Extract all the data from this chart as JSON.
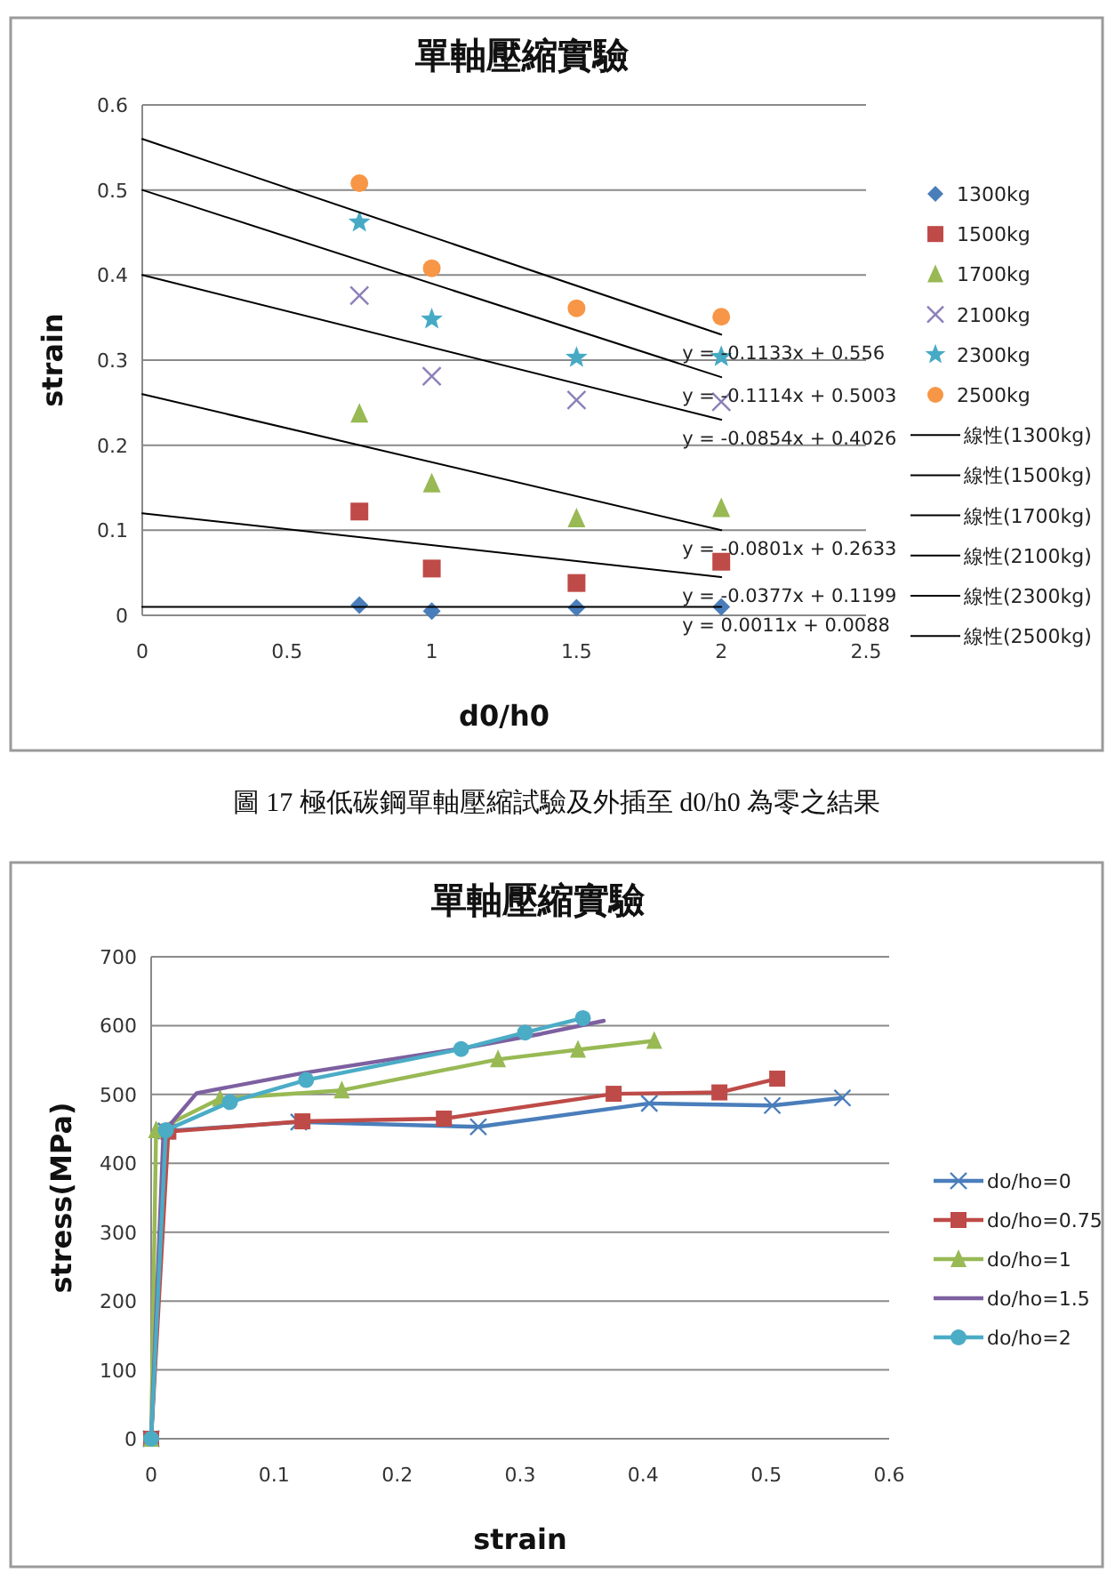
{
  "chart_data": [
    {
      "type": "scatter",
      "title": "單軸壓縮實驗",
      "xlabel": "d0/h0",
      "ylabel": "strain",
      "xlim": [
        0,
        2.5
      ],
      "xticks": [
        0,
        0.5,
        1,
        1.5,
        2,
        2.5
      ],
      "ylim": [
        0,
        0.6
      ],
      "yticks": [
        0,
        0.1,
        0.2,
        0.3,
        0.4,
        0.5,
        0.6
      ],
      "grid": "y",
      "legend": "right",
      "series": [
        {
          "name": "1300kg",
          "type": "scatter",
          "marker": "diamond",
          "color": "#4a7ebb",
          "x": [
            0.75,
            1,
            1.5,
            2
          ],
          "values": [
            0.012,
            0.005,
            0.009,
            0.01
          ]
        },
        {
          "name": "1500kg",
          "type": "scatter",
          "marker": "square",
          "color": "#be4b48",
          "x": [
            0.75,
            1,
            1.5,
            2
          ],
          "values": [
            0.122,
            0.055,
            0.038,
            0.063
          ]
        },
        {
          "name": "1700kg",
          "type": "scatter",
          "marker": "triangle",
          "color": "#98b954",
          "x": [
            0.75,
            1,
            1.5,
            2
          ],
          "values": [
            0.237,
            0.155,
            0.114,
            0.126
          ]
        },
        {
          "name": "2100kg",
          "type": "scatter",
          "marker": "cross",
          "color": "#8c7fb8",
          "x": [
            0.75,
            1,
            1.5,
            2
          ],
          "values": [
            0.376,
            0.281,
            0.253,
            0.251
          ]
        },
        {
          "name": "2300kg",
          "type": "scatter",
          "marker": "star",
          "color": "#46aac5",
          "x": [
            0.75,
            1,
            1.5,
            2
          ],
          "values": [
            0.462,
            0.348,
            0.303,
            0.304
          ]
        },
        {
          "name": "2500kg",
          "type": "scatter",
          "marker": "circle",
          "color": "#f79646",
          "x": [
            0.75,
            1,
            1.5,
            2
          ],
          "values": [
            0.508,
            0.408,
            0.361,
            0.351
          ]
        },
        {
          "name": "線性(1300kg)",
          "type": "line",
          "marker": "none",
          "color": "#000000",
          "x": [
            0,
            2
          ],
          "values": [
            0.01,
            0.01
          ]
        },
        {
          "name": "線性(1500kg)",
          "type": "line",
          "marker": "none",
          "color": "#000000",
          "x": [
            0,
            2
          ],
          "values": [
            0.12,
            0.045
          ]
        },
        {
          "name": "線性(1700kg)",
          "type": "line",
          "marker": "none",
          "color": "#000000",
          "x": [
            0,
            2
          ],
          "values": [
            0.26,
            0.1
          ]
        },
        {
          "name": "線性(2100kg)",
          "type": "line",
          "marker": "none",
          "color": "#000000",
          "x": [
            0,
            2
          ],
          "values": [
            0.4,
            0.23
          ]
        },
        {
          "name": "線性(2300kg)",
          "type": "line",
          "marker": "none",
          "color": "#000000",
          "x": [
            0,
            2
          ],
          "values": [
            0.5,
            0.28
          ]
        },
        {
          "name": "線性(2500kg)",
          "type": "line",
          "marker": "none",
          "color": "#000000",
          "x": [
            0,
            2
          ],
          "values": [
            0.56,
            0.33
          ]
        }
      ],
      "annotations": [
        "y = -0.1133x + 0.556",
        "y = -0.1114x + 0.5003",
        "y = -0.0854x + 0.4026",
        "y = -0.0801x + 0.2633",
        "y = -0.0377x + 0.1199",
        "y = 0.0011x + 0.0088",
        "圖 17 極低碳鋼單軸壓縮試驗及外插至 d0/h0 為零之結果"
      ]
    },
    {
      "type": "line",
      "title": "單軸壓縮實驗",
      "xlabel": "strain",
      "ylabel": "stress(MPa)",
      "xlim": [
        0,
        0.6
      ],
      "xticks": [
        0,
        0.1,
        0.2,
        0.3,
        0.4,
        0.5,
        0.6
      ],
      "ylim": [
        0,
        700
      ],
      "yticks": [
        0,
        100,
        200,
        300,
        400,
        500,
        600,
        700
      ],
      "grid": "y",
      "legend": "right",
      "series": [
        {
          "name": "do/ho=0",
          "marker": "cross",
          "color": "#4a7ebb",
          "x": [
            0,
            0.012,
            0.12,
            0.266,
            0.405,
            0.505,
            0.562
          ],
          "values": [
            0,
            447,
            460,
            453,
            487,
            484,
            495
          ]
        },
        {
          "name": "do/ho=0.75",
          "marker": "square",
          "color": "#be4b48",
          "x": [
            0,
            0.014,
            0.123,
            0.238,
            0.376,
            0.462,
            0.509
          ],
          "values": [
            0,
            446,
            461,
            465,
            501,
            503,
            523
          ]
        },
        {
          "name": "do/ho=1",
          "marker": "triangle",
          "color": "#98b954",
          "x": [
            0,
            0.004,
            0.056,
            0.155,
            0.282,
            0.347,
            0.409
          ],
          "values": [
            0,
            448,
            494,
            506,
            551,
            565,
            578
          ]
        },
        {
          "name": "do/ho=1.5",
          "marker": "none",
          "color": "#7d60a0",
          "x": [
            0,
            0.01,
            0.037,
            0.123,
            0.253,
            0.317,
            0.368
          ],
          "values": [
            0,
            445,
            502,
            531,
            567,
            588,
            607
          ]
        },
        {
          "name": "do/ho=2",
          "marker": "circle",
          "color": "#4bacc6",
          "x": [
            0,
            0.012,
            0.064,
            0.126,
            0.252,
            0.304,
            0.351
          ],
          "values": [
            0,
            448,
            489,
            521,
            566,
            590,
            611
          ]
        }
      ]
    }
  ]
}
